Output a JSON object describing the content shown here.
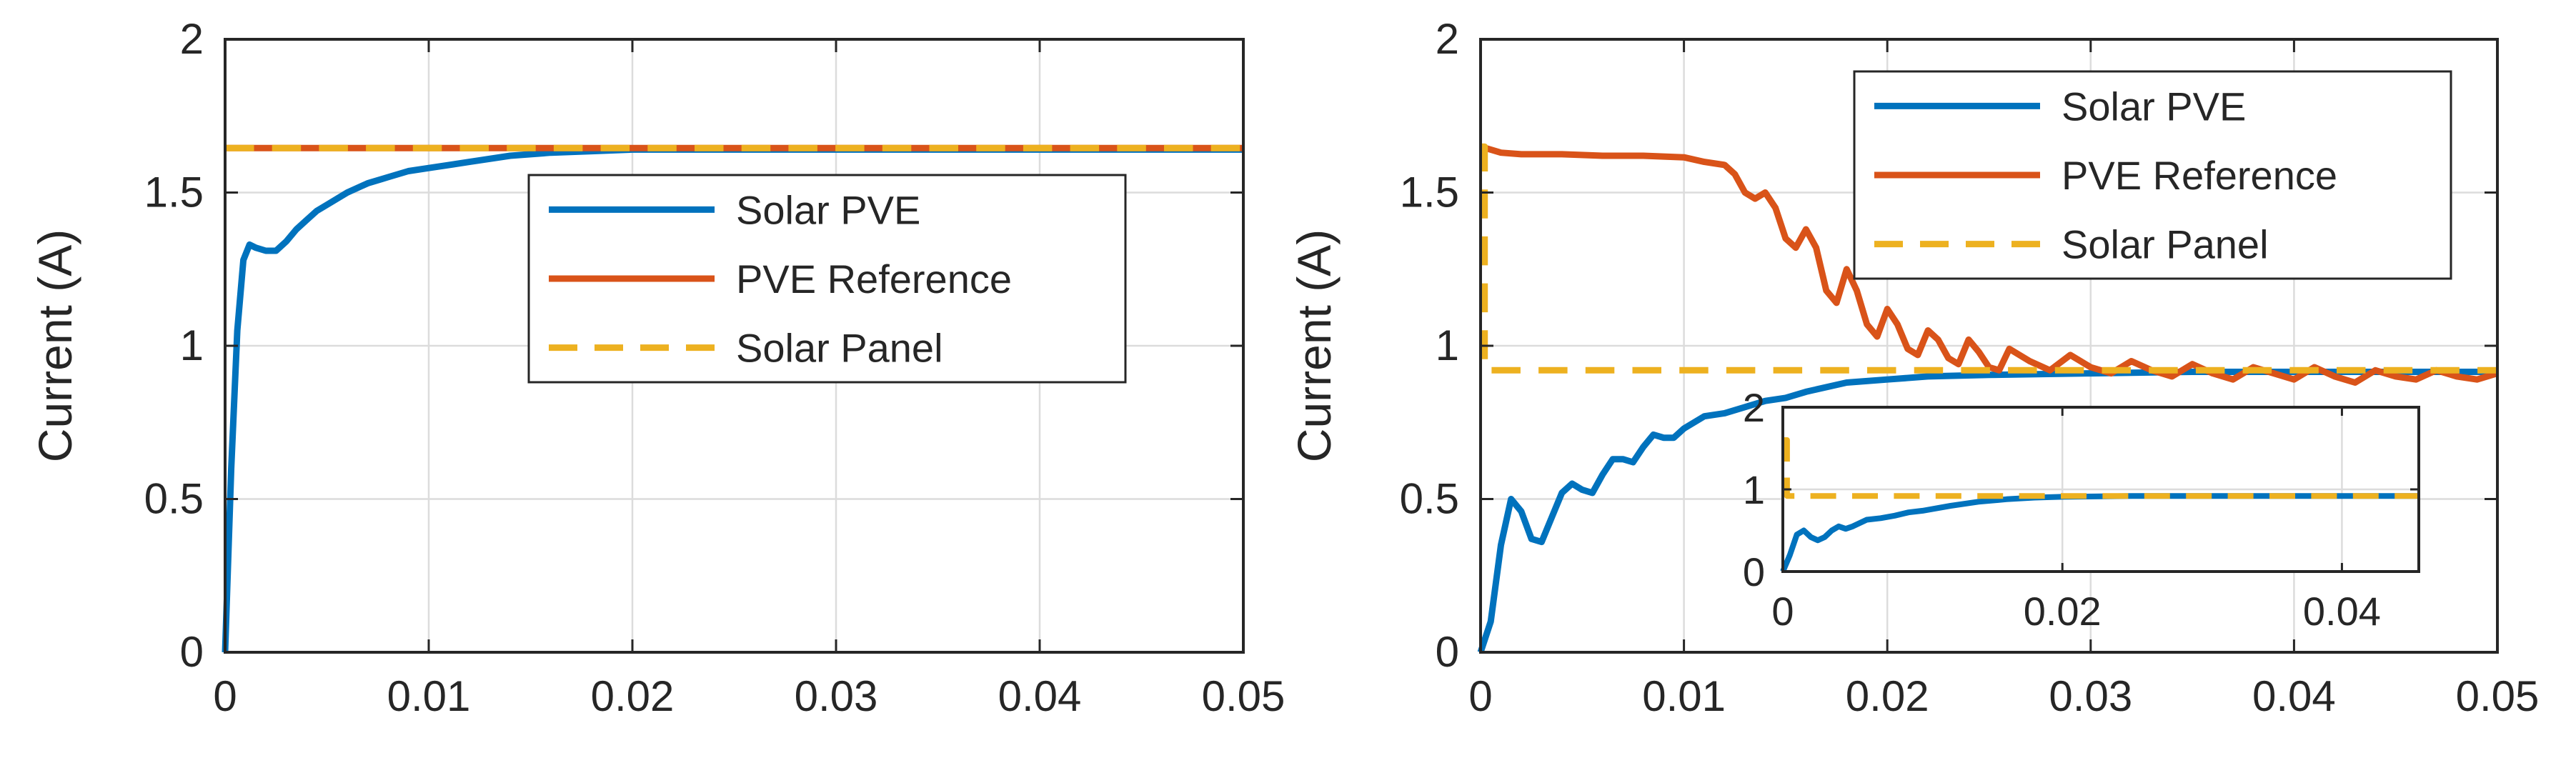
{
  "colors": {
    "solar_pve": "#0072bd",
    "pve_reference": "#d95319",
    "solar_panel": "#edb120"
  },
  "chart_data": [
    {
      "type": "line",
      "title": "",
      "xlabel": "",
      "ylabel": "Current (A)",
      "xlim": [
        0,
        0.05
      ],
      "ylim": [
        0,
        2
      ],
      "xticks": [
        "0",
        "0.01",
        "0.02",
        "0.03",
        "0.04",
        "0.05"
      ],
      "yticks": [
        "0",
        "0.5",
        "1",
        "1.5",
        "2"
      ],
      "grid": true,
      "legend": {
        "placement": "center-right",
        "entries": [
          "Solar PVE",
          "PVE Reference",
          "Solar Panel"
        ]
      },
      "series": [
        {
          "name": "Solar PVE",
          "style": "solid",
          "x": [
            0,
            0.0003,
            0.0006,
            0.0009,
            0.0012,
            0.0015,
            0.002,
            0.0025,
            0.003,
            0.0035,
            0.004,
            0.0045,
            0.005,
            0.006,
            0.007,
            0.008,
            0.009,
            0.01,
            0.012,
            0.014,
            0.016,
            0.018,
            0.02,
            0.025,
            0.03,
            0.035,
            0.04,
            0.045,
            0.05
          ],
          "y": [
            0,
            0.6,
            1.05,
            1.28,
            1.33,
            1.32,
            1.31,
            1.31,
            1.34,
            1.38,
            1.41,
            1.44,
            1.46,
            1.5,
            1.53,
            1.55,
            1.57,
            1.58,
            1.6,
            1.62,
            1.63,
            1.635,
            1.64,
            1.64,
            1.64,
            1.64,
            1.64,
            1.64,
            1.64
          ]
        },
        {
          "name": "PVE Reference",
          "style": "solid",
          "x": [
            0,
            0.05
          ],
          "y": [
            1.645,
            1.645
          ]
        },
        {
          "name": "Solar Panel",
          "style": "dashed",
          "x": [
            0,
            0.05
          ],
          "y": [
            1.645,
            1.645
          ]
        }
      ]
    },
    {
      "type": "line",
      "title": "",
      "xlabel": "",
      "ylabel": "Current (A)",
      "xlim": [
        0,
        0.05
      ],
      "ylim": [
        0,
        2
      ],
      "xticks": [
        "0",
        "0.01",
        "0.02",
        "0.03",
        "0.04",
        "0.05"
      ],
      "yticks": [
        "0",
        "0.5",
        "1",
        "1.5",
        "2"
      ],
      "grid": true,
      "legend": {
        "placement": "top-right",
        "entries": [
          "Solar PVE",
          "PVE Reference",
          "Solar Panel"
        ]
      },
      "series": [
        {
          "name": "Solar PVE",
          "style": "solid",
          "x": [
            0,
            0.0005,
            0.001,
            0.0015,
            0.002,
            0.0025,
            0.003,
            0.0035,
            0.004,
            0.0045,
            0.005,
            0.0055,
            0.006,
            0.0065,
            0.007,
            0.0075,
            0.008,
            0.0085,
            0.009,
            0.0095,
            0.01,
            0.011,
            0.012,
            0.013,
            0.014,
            0.015,
            0.016,
            0.018,
            0.02,
            0.022,
            0.025,
            0.03,
            0.035,
            0.04,
            0.045,
            0.05
          ],
          "y": [
            0,
            0.1,
            0.35,
            0.5,
            0.46,
            0.37,
            0.36,
            0.44,
            0.52,
            0.55,
            0.53,
            0.52,
            0.58,
            0.63,
            0.63,
            0.62,
            0.67,
            0.71,
            0.7,
            0.7,
            0.73,
            0.77,
            0.78,
            0.8,
            0.82,
            0.83,
            0.85,
            0.88,
            0.89,
            0.9,
            0.905,
            0.91,
            0.915,
            0.915,
            0.915,
            0.915
          ]
        },
        {
          "name": "PVE Reference",
          "style": "solid",
          "x": [
            0,
            0.001,
            0.002,
            0.004,
            0.006,
            0.008,
            0.01,
            0.011,
            0.012,
            0.0125,
            0.013,
            0.0135,
            0.014,
            0.0145,
            0.015,
            0.0155,
            0.016,
            0.0165,
            0.017,
            0.0175,
            0.018,
            0.0185,
            0.019,
            0.0195,
            0.02,
            0.0205,
            0.021,
            0.0215,
            0.022,
            0.0225,
            0.023,
            0.0235,
            0.024,
            0.0245,
            0.025,
            0.0255,
            0.026,
            0.027,
            0.028,
            0.029,
            0.03,
            0.031,
            0.032,
            0.033,
            0.034,
            0.035,
            0.036,
            0.037,
            0.038,
            0.039,
            0.04,
            0.041,
            0.042,
            0.043,
            0.044,
            0.045,
            0.046,
            0.047,
            0.048,
            0.049,
            0.05
          ],
          "y": [
            1.65,
            1.63,
            1.625,
            1.625,
            1.62,
            1.62,
            1.615,
            1.6,
            1.59,
            1.56,
            1.5,
            1.48,
            1.5,
            1.45,
            1.35,
            1.32,
            1.38,
            1.32,
            1.18,
            1.14,
            1.25,
            1.18,
            1.07,
            1.03,
            1.12,
            1.07,
            0.99,
            0.97,
            1.05,
            1.02,
            0.96,
            0.94,
            1.02,
            0.98,
            0.93,
            0.92,
            0.99,
            0.95,
            0.92,
            0.97,
            0.93,
            0.91,
            0.95,
            0.92,
            0.9,
            0.94,
            0.91,
            0.89,
            0.93,
            0.91,
            0.89,
            0.93,
            0.9,
            0.88,
            0.92,
            0.9,
            0.89,
            0.92,
            0.9,
            0.89,
            0.91
          ]
        },
        {
          "name": "Solar Panel",
          "style": "dashed",
          "x": [
            0,
            0.0002,
            0.0002,
            0.05
          ],
          "y": [
            1.65,
            1.65,
            0.92,
            0.92
          ]
        }
      ],
      "inset": {
        "xlim": [
          0,
          0.0455
        ],
        "ylim": [
          0,
          2
        ],
        "xticks": [
          "0",
          "0.02",
          "0.04"
        ],
        "yticks": [
          "0",
          "1",
          "2"
        ],
        "grid": true,
        "series": [
          {
            "name": "Solar PVE",
            "style": "solid",
            "x": [
              0,
              0.0005,
              0.001,
              0.0015,
              0.002,
              0.0025,
              0.003,
              0.0035,
              0.004,
              0.0045,
              0.005,
              0.006,
              0.007,
              0.008,
              0.009,
              0.01,
              0.012,
              0.014,
              0.016,
              0.018,
              0.02,
              0.025,
              0.03,
              0.035,
              0.04,
              0.0455
            ],
            "y": [
              0,
              0.2,
              0.45,
              0.5,
              0.42,
              0.38,
              0.42,
              0.5,
              0.55,
              0.52,
              0.55,
              0.63,
              0.65,
              0.68,
              0.72,
              0.74,
              0.8,
              0.85,
              0.88,
              0.9,
              0.91,
              0.92,
              0.92,
              0.92,
              0.92,
              0.92
            ]
          },
          {
            "name": "Solar Panel",
            "style": "dashed",
            "x": [
              0,
              0.0003,
              0.0003,
              0.0455
            ],
            "y": [
              1.6,
              1.6,
              0.92,
              0.92
            ]
          }
        ]
      }
    }
  ]
}
